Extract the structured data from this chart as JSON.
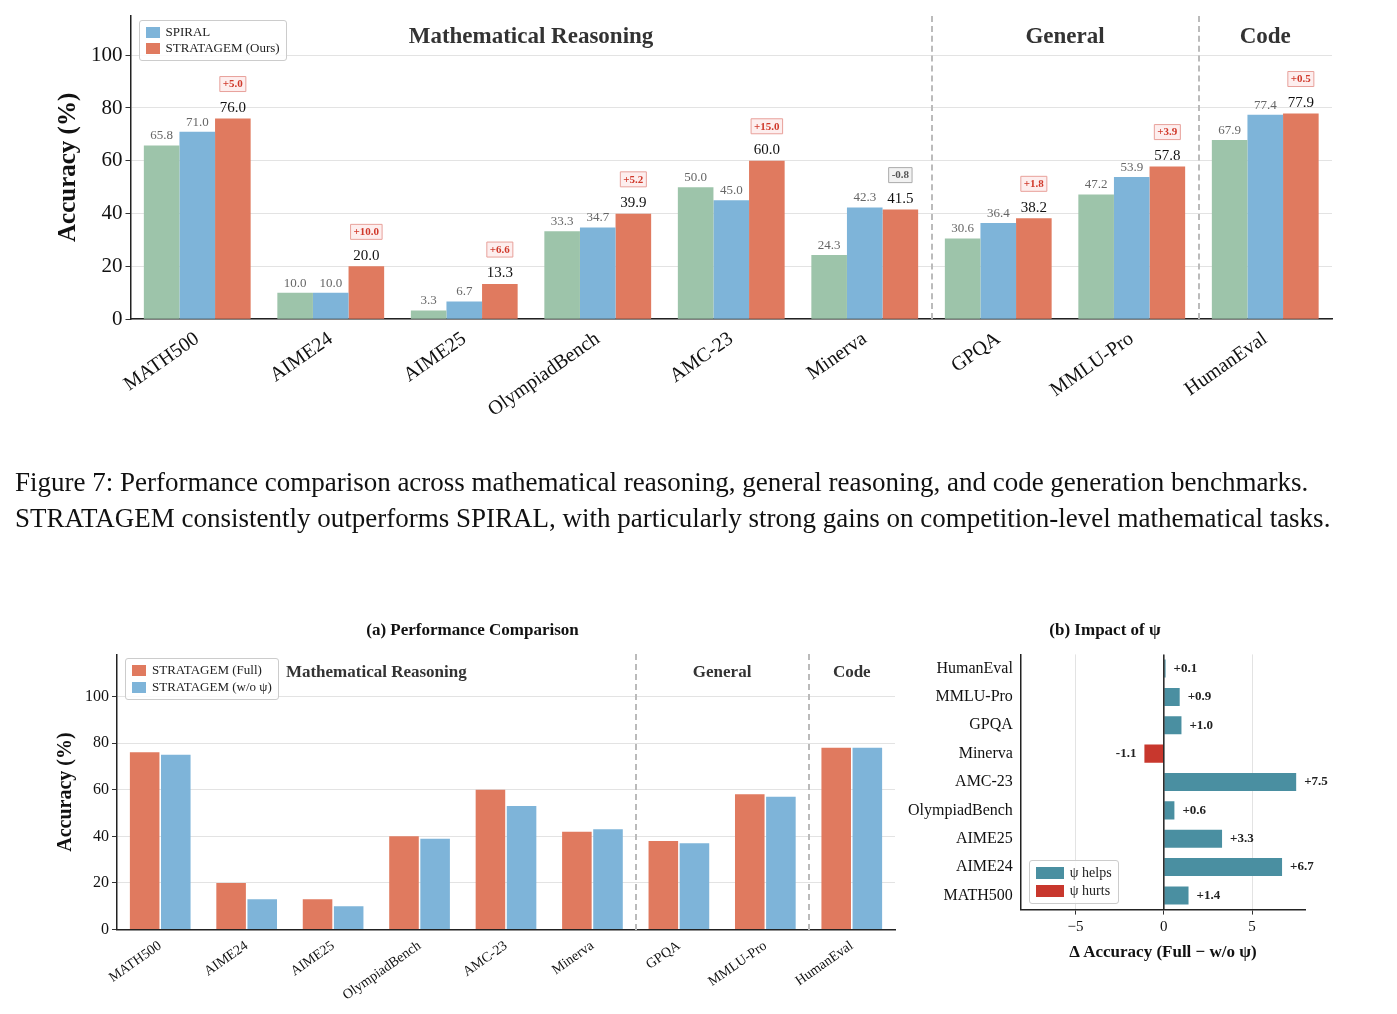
{
  "chart_data": [
    {
      "type": "bar",
      "ylabel": "Accuracy (%)",
      "categories": [
        "MATH500",
        "AIME24",
        "AIME25",
        "OlympiadBench",
        "AMC-23",
        "Minerva",
        "GPQA",
        "MMLU-Pro",
        "HumanEval"
      ],
      "series": [
        {
          "color": "#9dc4aa",
          "values": [
            65.8,
            10.0,
            3.3,
            33.3,
            50.0,
            24.3,
            30.6,
            47.2,
            67.9
          ],
          "value_labels": [
            "65.8",
            "10.0",
            "3.3",
            "33.3",
            "50.0",
            "24.3",
            "30.6",
            "47.2",
            "67.9"
          ]
        },
        {
          "name": "SPIRAL",
          "color": "#7eb4d9",
          "values": [
            71.0,
            10.0,
            6.7,
            34.7,
            45.0,
            42.3,
            36.4,
            53.9,
            77.4
          ],
          "value_labels": [
            "71.0",
            "10.0",
            "6.7",
            "34.7",
            "45.0",
            "42.3",
            "36.4",
            "53.9",
            "77.4"
          ]
        },
        {
          "name": "STRATAGEM (Ours)",
          "color": "#e07a5f",
          "values": [
            76.0,
            20.0,
            13.3,
            39.9,
            60.0,
            41.5,
            38.2,
            57.8,
            77.9
          ],
          "value_labels": [
            "76.0",
            "20.0",
            "13.3",
            "39.9",
            "60.0",
            "41.5",
            "38.2",
            "57.8",
            "77.9"
          ]
        }
      ],
      "ylim": [
        0,
        115
      ],
      "yticks": [
        0,
        20,
        40,
        60,
        80,
        100
      ],
      "grid": "y",
      "legend": "top left",
      "annotations": [
        "Mathematical Reasoning",
        "General",
        "Code",
        "Figure 7: Performance comparison across mathematical reasoning, general reasoning, and code generation benchmarks. STRATAGEM consistently outperforms SPIRAL, with particularly strong gains on competition-level mathematical tasks.",
        "+5.0",
        "+10.0",
        "+6.6",
        "+5.2",
        "+15.0",
        "-0.8",
        "+1.8",
        "+3.9",
        "+0.5"
      ]
    },
    {
      "type": "bar",
      "title": "(a) Performance Comparison",
      "ylabel": "Accuracy (%)",
      "categories": [
        "MATH500",
        "AIME24",
        "AIME25",
        "OlympiadBench",
        "AMC-23",
        "Minerva",
        "GPQA",
        "MMLU-Pro",
        "HumanEval"
      ],
      "series": [
        {
          "name": "STRATAGEM (Full)",
          "color": "#e07a5f",
          "values": [
            76,
            20,
            13,
            40,
            60,
            42,
            38,
            58,
            78
          ]
        },
        {
          "name": "STRATAGEM (w/o ψ)",
          "color": "#7eb4d9",
          "values": [
            75,
            13,
            10,
            39,
            53,
            43,
            37,
            57,
            78
          ]
        }
      ],
      "ylim": [
        0,
        118
      ],
      "yticks": [
        0,
        20,
        40,
        60,
        80,
        100
      ],
      "grid": "y",
      "legend": "top left",
      "annotations": [
        "Mathematical Reasoning",
        "General",
        "Code"
      ]
    },
    {
      "type": "bar",
      "orientation": "horizontal",
      "title": "(b) Impact of ψ",
      "xlabel": "Δ Accuracy (Full − w/o ψ)",
      "categories": [
        "HumanEval",
        "MMLU-Pro",
        "GPQA",
        "Minerva",
        "AMC-23",
        "OlympiadBench",
        "AIME25",
        "AIME24",
        "MATH500"
      ],
      "series": [
        {
          "name": "ψ helps",
          "color": "#4a8fa1",
          "values": [
            0.1,
            0.9,
            1.0,
            null,
            7.5,
            0.6,
            3.3,
            6.7,
            1.4
          ],
          "value_labels": [
            "+0.1",
            "+0.9",
            "+1.0",
            null,
            "+7.5",
            "+0.6",
            "+3.3",
            "+6.7",
            "+1.4"
          ]
        },
        {
          "name": "ψ hurts",
          "color": "#c8372d",
          "values": [
            null,
            null,
            null,
            -1.1,
            null,
            null,
            null,
            null,
            null
          ],
          "value_labels": [
            null,
            null,
            null,
            "-1.1",
            null,
            null,
            null,
            null,
            null
          ]
        }
      ],
      "xlim": [
        -8.1,
        8
      ],
      "xticks": [
        {
          "value": -5,
          "label": "−5"
        },
        0,
        5
      ],
      "grid": "x",
      "legend": "bottom left",
      "ref_lines": [
        {
          "axis": "x",
          "value": 0
        }
      ]
    }
  ]
}
